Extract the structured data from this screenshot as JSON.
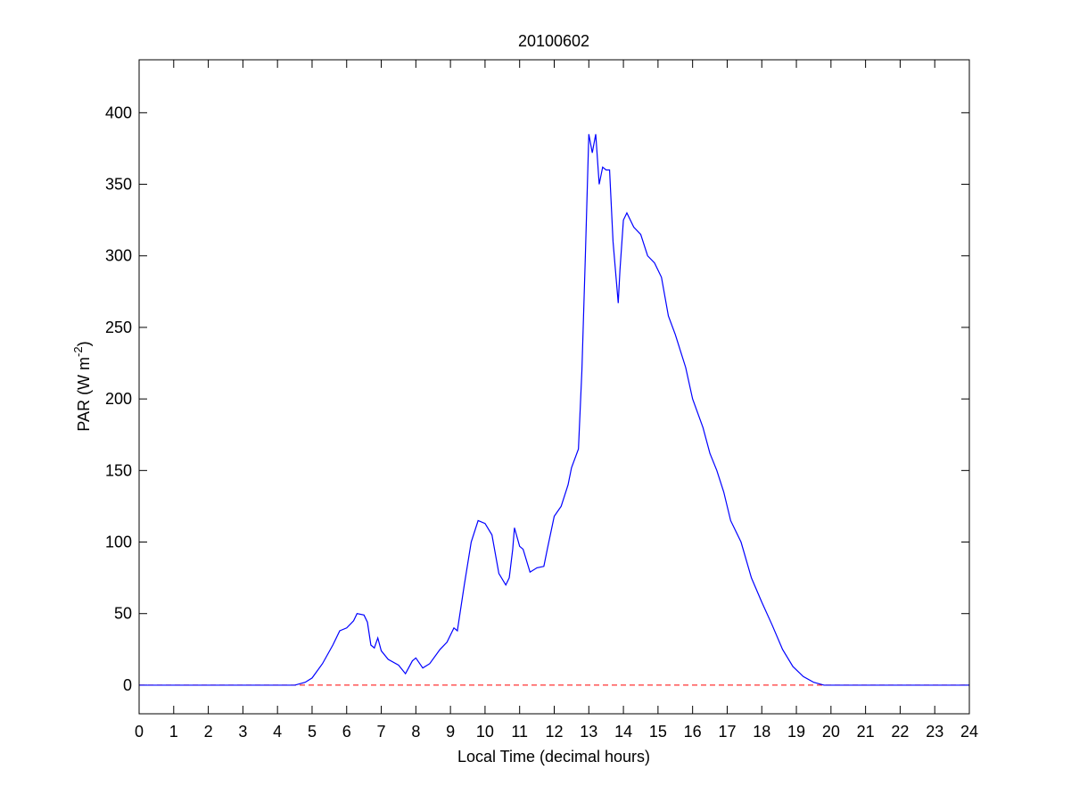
{
  "chart_data": {
    "type": "line",
    "title": "20100602",
    "xlabel": "Local Time (decimal hours)",
    "ylabel": {
      "text": "PAR (W m",
      "superscript": "-2",
      "suffix": ")"
    },
    "x": [
      0,
      4.5,
      4.8,
      5.0,
      5.3,
      5.6,
      5.8,
      6.0,
      6.2,
      6.3,
      6.5,
      6.6,
      6.7,
      6.8,
      6.9,
      7.0,
      7.2,
      7.5,
      7.7,
      7.9,
      8.0,
      8.2,
      8.4,
      8.7,
      8.9,
      9.1,
      9.2,
      9.4,
      9.6,
      9.8,
      10.0,
      10.2,
      10.4,
      10.6,
      10.7,
      10.8,
      10.85,
      11.0,
      11.1,
      11.3,
      11.5,
      11.7,
      11.8,
      12.0,
      12.2,
      12.4,
      12.5,
      12.7,
      12.8,
      12.9,
      13.0,
      13.1,
      13.2,
      13.3,
      13.4,
      13.5,
      13.6,
      13.7,
      13.85,
      13.9,
      14.0,
      14.1,
      14.3,
      14.5,
      14.7,
      14.9,
      15.1,
      15.3,
      15.5,
      15.8,
      16.0,
      16.3,
      16.5,
      16.7,
      16.9,
      17.1,
      17.4,
      17.7,
      18.0,
      18.3,
      18.6,
      18.9,
      19.2,
      19.5,
      19.8,
      24
    ],
    "series": [
      {
        "color": "#0000ff",
        "values": [
          0,
          0,
          2,
          5,
          15,
          28,
          38,
          40,
          45,
          50,
          49,
          44,
          28,
          26,
          33,
          24,
          18,
          14,
          8,
          17,
          19,
          12,
          15,
          25,
          30,
          40,
          38,
          70,
          100,
          115,
          113,
          105,
          78,
          70,
          75,
          95,
          110,
          97,
          95,
          79,
          82,
          83,
          95,
          118,
          125,
          140,
          152,
          165,
          220,
          300,
          385,
          372,
          385,
          350,
          362,
          360,
          360,
          310,
          267,
          290,
          325,
          330,
          320,
          315,
          300,
          295,
          285,
          258,
          245,
          222,
          200,
          180,
          162,
          150,
          135,
          115,
          100,
          75,
          58,
          42,
          25,
          13,
          6,
          2,
          0,
          0
        ]
      }
    ],
    "hline": {
      "value": 0,
      "color": "#ff0000",
      "style": "dashed"
    },
    "xlim": [
      0,
      24
    ],
    "xticks": [
      0,
      1,
      2,
      3,
      4,
      5,
      6,
      7,
      8,
      9,
      10,
      11,
      12,
      13,
      14,
      15,
      16,
      17,
      18,
      19,
      20,
      21,
      22,
      23,
      24
    ],
    "ylim": [
      -20,
      437
    ],
    "yticks": [
      0,
      50,
      100,
      150,
      200,
      250,
      300,
      350,
      400
    ],
    "grid": false
  }
}
